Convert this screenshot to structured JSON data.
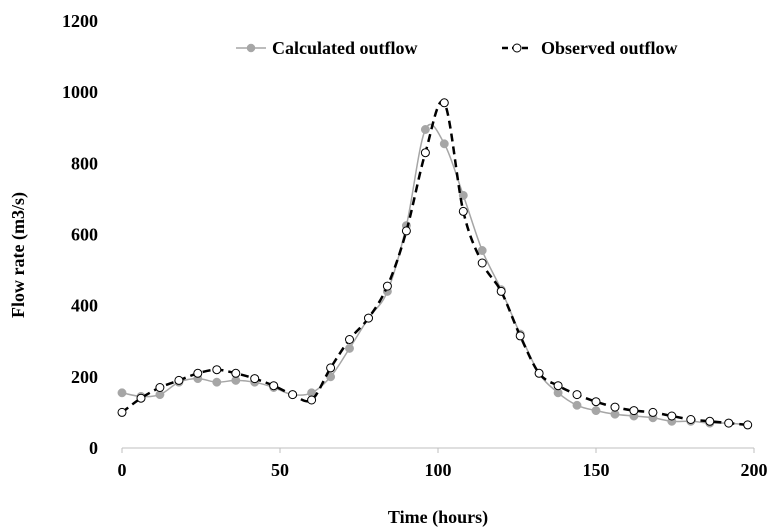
{
  "chart_data": {
    "type": "line",
    "title": "",
    "xlabel": "Time (hours)",
    "ylabel": "Flow rate (m3/s)",
    "xlim": [
      0,
      200
    ],
    "ylim": [
      0,
      1200
    ],
    "xticks": [
      0,
      50,
      100,
      150,
      200
    ],
    "yticks": [
      0,
      200,
      400,
      600,
      800,
      1000,
      1200
    ],
    "grid": false,
    "legend_position": "top",
    "series": [
      {
        "name": "Calculated outflow",
        "color": "#a6a6a6",
        "line_style": "solid",
        "marker": "filled-circle",
        "x": [
          0,
          6,
          12,
          18,
          24,
          30,
          36,
          42,
          48,
          54,
          60,
          66,
          72,
          78,
          84,
          90,
          96,
          102,
          108,
          114,
          120,
          126,
          132,
          138,
          144,
          150,
          156,
          162,
          168,
          174,
          180,
          186,
          192,
          198
        ],
        "y": [
          155,
          145,
          150,
          185,
          195,
          185,
          190,
          185,
          170,
          150,
          155,
          200,
          280,
          365,
          440,
          625,
          895,
          855,
          710,
          555,
          445,
          320,
          210,
          155,
          120,
          105,
          95,
          90,
          85,
          75,
          75,
          70,
          70,
          65
        ]
      },
      {
        "name": "Observed outflow",
        "color": "#000000",
        "line_style": "dashed",
        "marker": "open-circle",
        "x": [
          0,
          6,
          12,
          18,
          24,
          30,
          36,
          42,
          48,
          54,
          60,
          66,
          72,
          78,
          84,
          90,
          96,
          102,
          108,
          114,
          120,
          126,
          132,
          138,
          144,
          150,
          156,
          162,
          168,
          174,
          180,
          186,
          192,
          198
        ],
        "y": [
          100,
          140,
          170,
          190,
          210,
          220,
          210,
          195,
          175,
          150,
          135,
          225,
          305,
          365,
          455,
          610,
          830,
          970,
          665,
          520,
          440,
          315,
          210,
          175,
          150,
          130,
          115,
          105,
          100,
          90,
          80,
          75,
          70,
          65
        ]
      }
    ]
  }
}
